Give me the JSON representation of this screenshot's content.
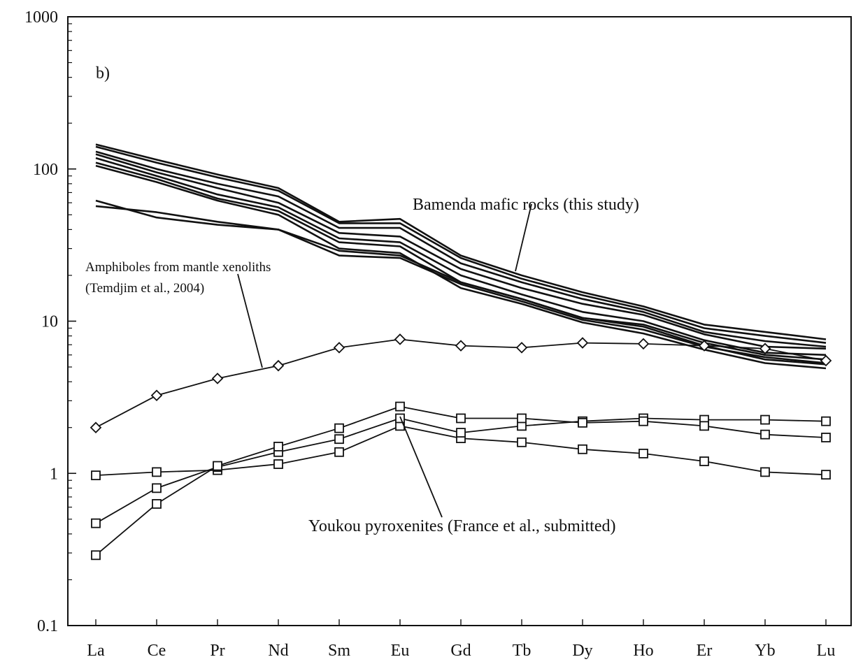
{
  "chart_data": {
    "type": "line",
    "panel_label": "b)",
    "y_scale": "log",
    "ylim": [
      0.1,
      1000
    ],
    "y_ticks": [
      "0.1",
      "1",
      "10",
      "100",
      "1000"
    ],
    "categories": [
      "La",
      "Ce",
      "Pr",
      "Nd",
      "Sm",
      "Eu",
      "Gd",
      "Tb",
      "Dy",
      "Ho",
      "Er",
      "Yb",
      "Lu"
    ],
    "annotations": {
      "bamenda": "Bamenda mafic rocks (this study)",
      "amphibole_line1": "Amphiboles from mantle xenoliths",
      "amphibole_line2": "(Temdjim et al., 2004)",
      "youkou": "Youkou pyroxenites (France et al., submitted)"
    },
    "series": [
      {
        "group": "bamenda",
        "marker": "none",
        "values": [
          145,
          115,
          92,
          75,
          45,
          47,
          27,
          20,
          15.5,
          12.5,
          9.5,
          8.5,
          7.6
        ]
      },
      {
        "group": "bamenda",
        "marker": "none",
        "values": [
          140,
          110,
          88,
          72,
          44,
          44,
          26,
          19,
          14.8,
          12,
          9,
          8,
          7.2
        ]
      },
      {
        "group": "bamenda",
        "marker": "none",
        "values": [
          130,
          100,
          80,
          66,
          41,
          41,
          24,
          18,
          14,
          11.5,
          8.5,
          7.4,
          6.8
        ]
      },
      {
        "group": "bamenda",
        "marker": "none",
        "values": [
          125,
          95,
          75,
          60,
          38,
          36,
          22,
          16.5,
          13,
          11,
          8.2,
          6.8,
          6.6
        ]
      },
      {
        "group": "bamenda",
        "marker": "none",
        "values": [
          118,
          90,
          68,
          56,
          35,
          33,
          20,
          15,
          11.5,
          10,
          7.5,
          6.2,
          6.0
        ]
      },
      {
        "group": "bamenda",
        "marker": "none",
        "values": [
          110,
          86,
          64,
          53,
          33,
          31,
          18,
          14,
          10.5,
          9.2,
          6.9,
          5.6,
          5.2
        ]
      },
      {
        "group": "bamenda",
        "marker": "none",
        "values": [
          105,
          82,
          62,
          50,
          30,
          28,
          16.5,
          13,
          9.8,
          8.3,
          6.5,
          5.3,
          4.9
        ]
      },
      {
        "group": "bamenda",
        "marker": "none",
        "values": [
          62,
          48,
          43,
          40,
          29,
          27,
          18,
          14,
          10.5,
          9.5,
          7.2,
          6.0,
          5.6
        ]
      },
      {
        "group": "bamenda",
        "marker": "none",
        "values": [
          57,
          52,
          45,
          40,
          27,
          26,
          17.5,
          13.5,
          10.2,
          8.8,
          6.8,
          5.8,
          5.3
        ]
      },
      {
        "group": "amphibole",
        "marker": "diamond",
        "values": [
          2.0,
          3.25,
          4.2,
          5.1,
          6.7,
          7.6,
          6.9,
          6.7,
          7.2,
          7.1,
          6.9,
          6.6,
          5.5
        ]
      },
      {
        "group": "youkou",
        "marker": "square",
        "values": [
          0.97,
          1.02,
          1.05,
          1.15,
          1.38,
          2.05,
          1.7,
          1.6,
          1.44,
          1.35,
          1.2,
          1.02,
          0.98
        ]
      },
      {
        "group": "youkou",
        "marker": "square",
        "values": [
          0.47,
          0.8,
          1.1,
          1.38,
          1.68,
          2.3,
          1.85,
          2.05,
          2.2,
          2.3,
          2.25,
          2.25,
          2.2
        ]
      },
      {
        "group": "youkou",
        "marker": "square",
        "values": [
          0.29,
          0.63,
          1.12,
          1.5,
          1.98,
          2.75,
          2.3,
          2.3,
          2.15,
          2.2,
          2.05,
          1.8,
          1.72
        ]
      }
    ]
  }
}
